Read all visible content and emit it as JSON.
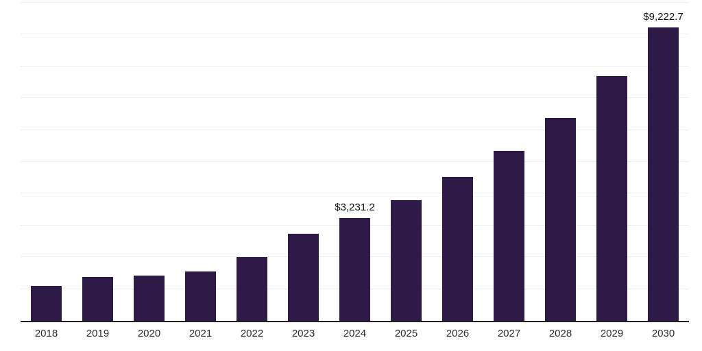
{
  "chart_data": {
    "type": "bar",
    "title": "",
    "xlabel": "",
    "ylabel": "",
    "categories": [
      "2018",
      "2019",
      "2020",
      "2021",
      "2022",
      "2023",
      "2024",
      "2025",
      "2026",
      "2027",
      "2028",
      "2029",
      "2030"
    ],
    "values": [
      1100,
      1370,
      1430,
      1560,
      2010,
      2730,
      3231.2,
      3800,
      4520,
      5350,
      6380,
      7700,
      9222.7
    ],
    "value_labels": [
      "",
      "",
      "",
      "",
      "",
      "",
      "$3,231.2",
      "",
      "",
      "",
      "",
      "",
      "$9,222.7"
    ],
    "ylim": [
      0,
      10000
    ],
    "grid_step": 1000,
    "grid": "horizontal",
    "legend": "none",
    "bar_color": "#2e1a47",
    "gridline_color": "#ececec",
    "axis_line_color": "#1f1f1f",
    "tick_label_color": "#2b2b2b"
  }
}
